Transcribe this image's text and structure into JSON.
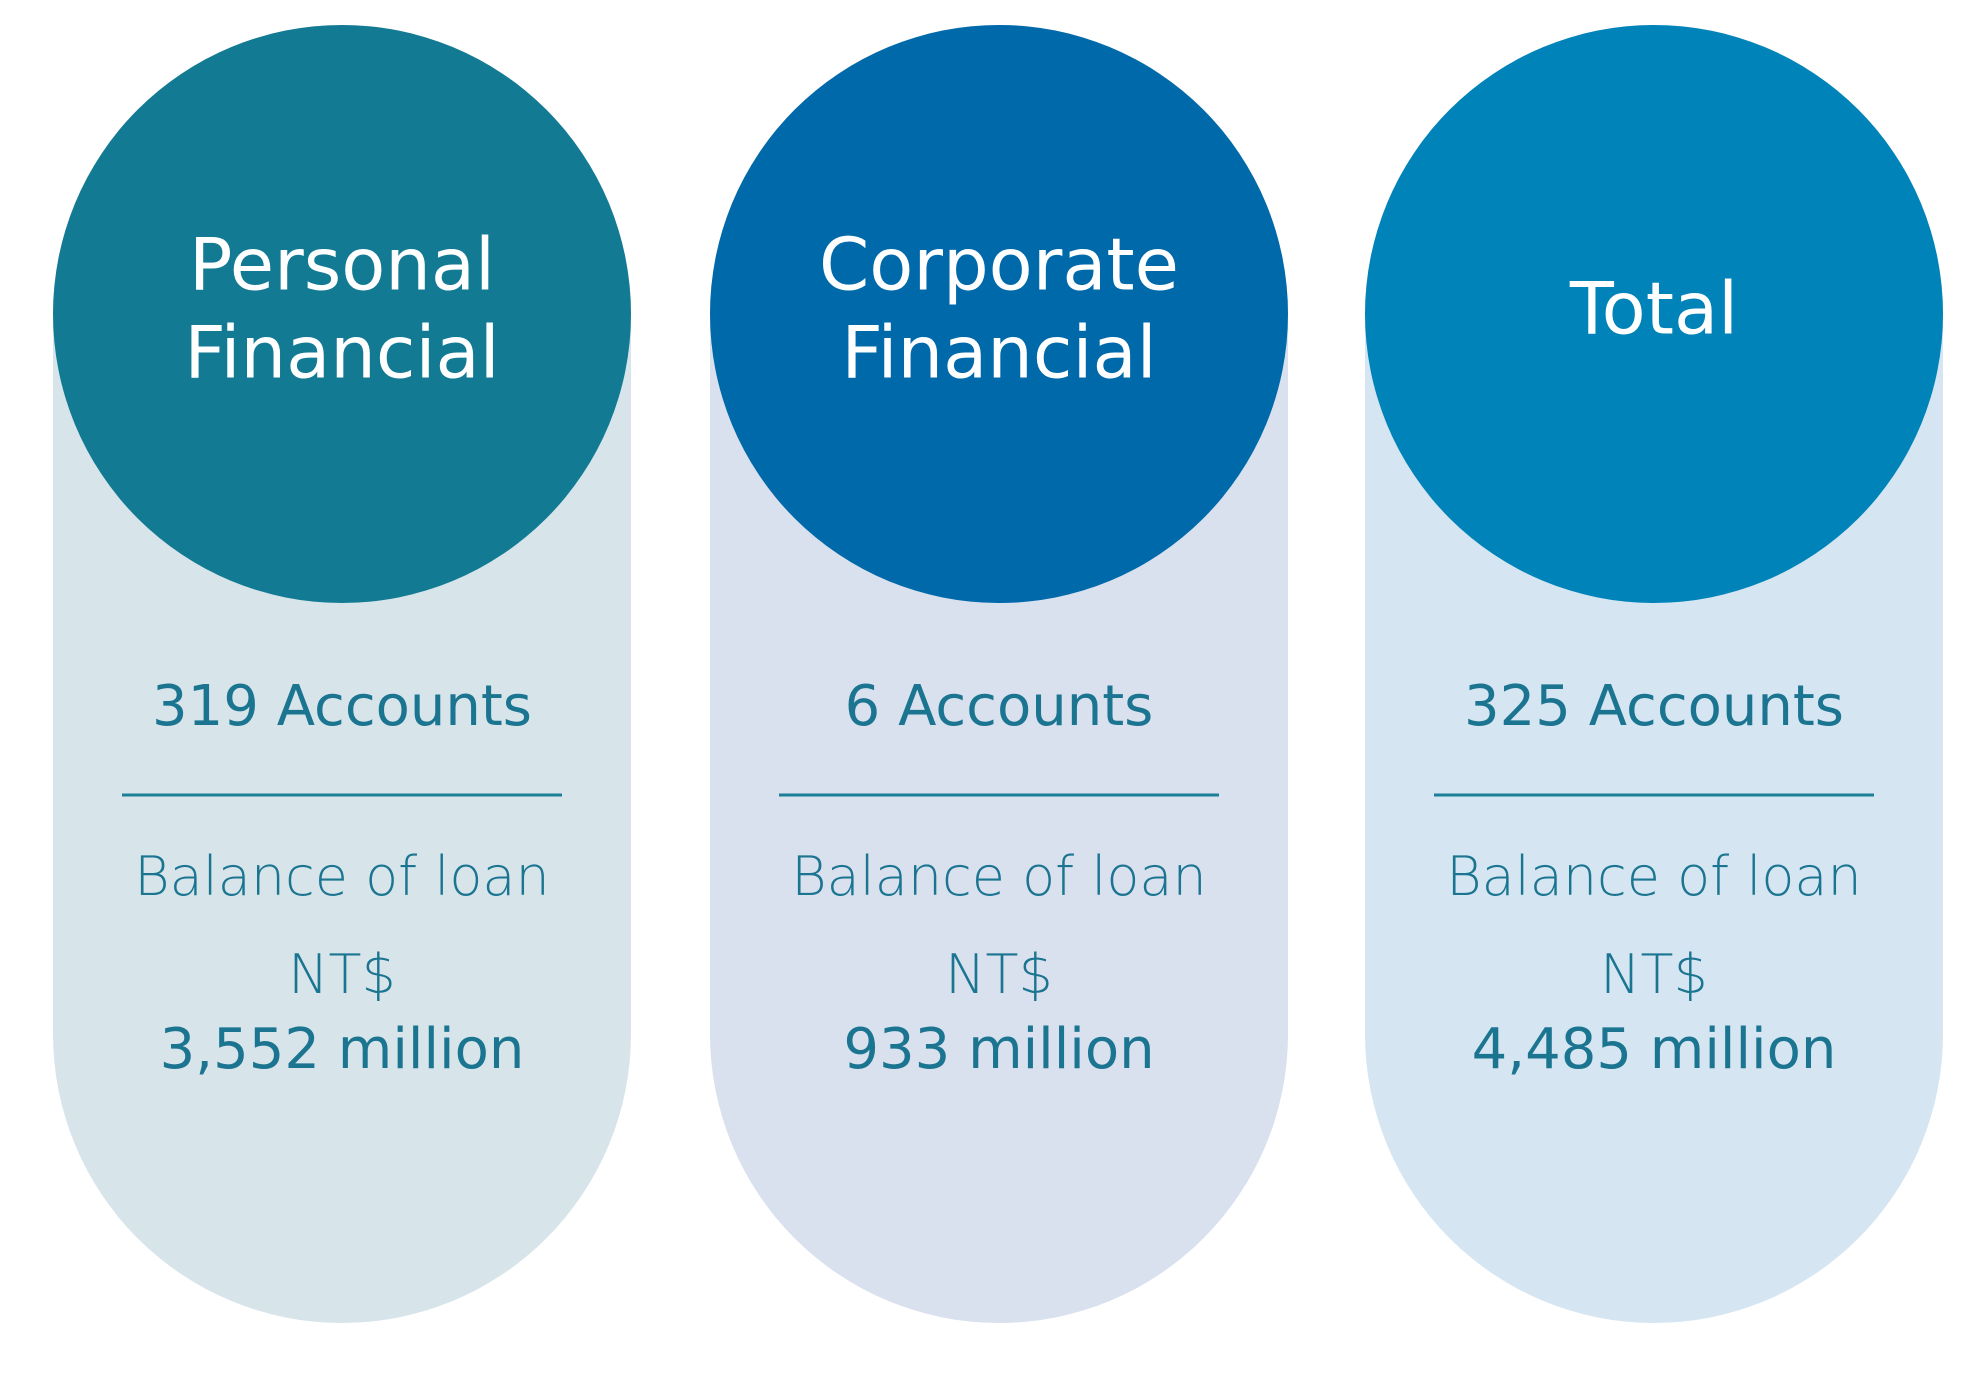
{
  "cards": [
    {
      "title_lines": [
        "Personal",
        "Financial"
      ],
      "accounts": "319 Accounts",
      "balance_label": "Balance of loan",
      "currency": "NT$",
      "amount": "3,552 million"
    },
    {
      "title_lines": [
        "Corporate",
        "Financial"
      ],
      "accounts": "6 Accounts",
      "balance_label": "Balance of loan",
      "currency": "NT$",
      "amount": "933 million"
    },
    {
      "title_lines": [
        "Total"
      ],
      "accounts": "325 Accounts",
      "balance_label": "Balance of loan",
      "currency": "NT$",
      "amount": "4,485 million"
    }
  ]
}
